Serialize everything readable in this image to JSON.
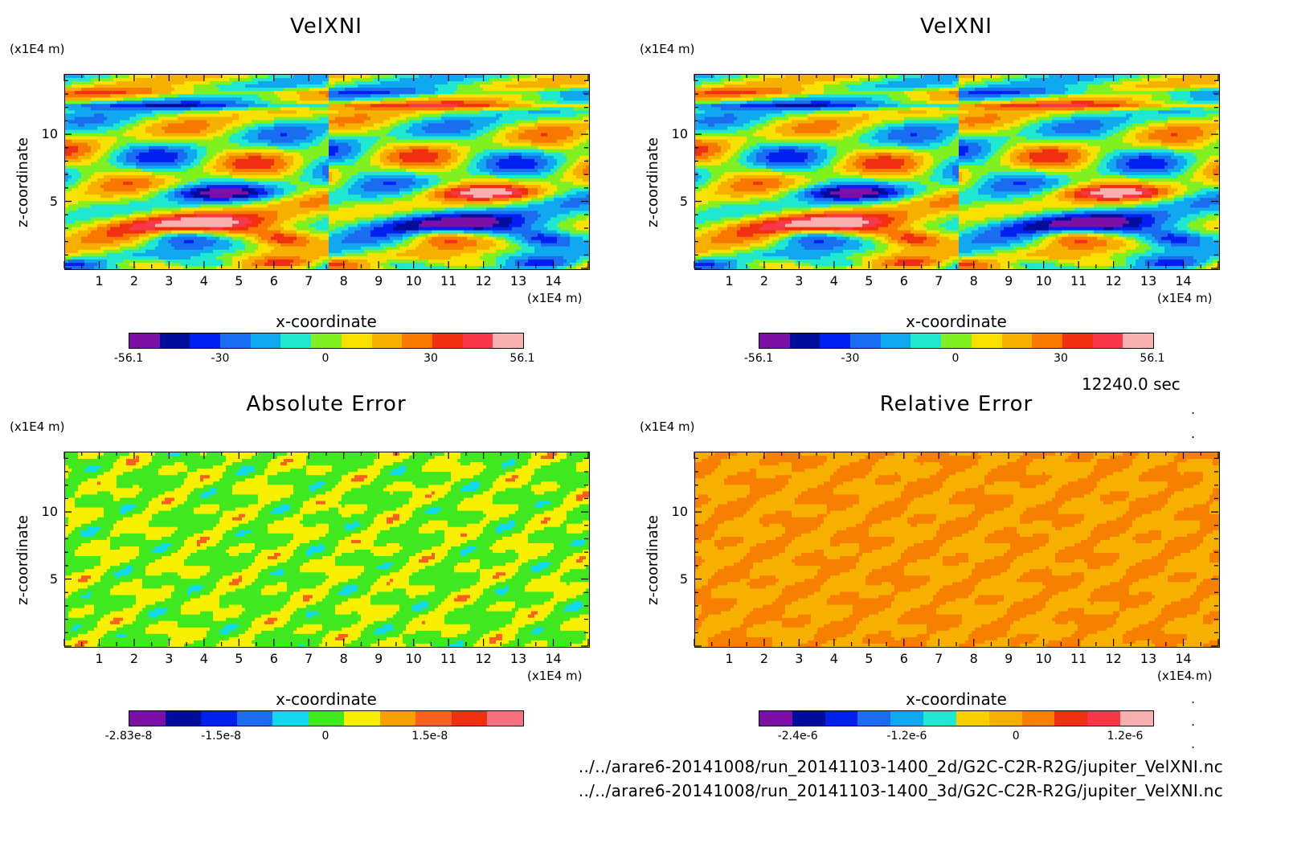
{
  "chart_data": [
    {
      "type": "heatmap",
      "title": "VelXNI",
      "xlabel": "x-coordinate",
      "ylabel": "z-coordinate",
      "x_unit": "(x1E4 m)",
      "y_unit": "(x1E4 m)",
      "x_ticks": [
        "1",
        "2",
        "3",
        "4",
        "5",
        "6",
        "7",
        "8",
        "9",
        "10",
        "11",
        "12",
        "13",
        "14"
      ],
      "y_ticks": [
        "5",
        "10"
      ],
      "xlim": [
        0,
        15
      ],
      "ylim": [
        0,
        14.5
      ],
      "colorbar": {
        "colors": [
          "#7b0fa6",
          "#000c9c",
          "#0020f0",
          "#1a6cf0",
          "#10a8f0",
          "#20e8d0",
          "#80f020",
          "#f8e000",
          "#f8b000",
          "#f87800",
          "#f03010",
          "#f83848",
          "#f8b0b0"
        ],
        "labels": [
          "-56.1",
          "-30",
          "0",
          "30",
          "56.1"
        ],
        "label_values": [
          -56.1,
          -30,
          0,
          30,
          56.1
        ],
        "range": [
          -56.1,
          56.1
        ]
      },
      "field": "velocity"
    },
    {
      "type": "heatmap",
      "title": "VelXNI",
      "xlabel": "x-coordinate",
      "ylabel": "z-coordinate",
      "x_unit": "(x1E4 m)",
      "y_unit": "(x1E4 m)",
      "x_ticks": [
        "1",
        "2",
        "3",
        "4",
        "5",
        "6",
        "7",
        "8",
        "9",
        "10",
        "11",
        "12",
        "13",
        "14"
      ],
      "y_ticks": [
        "5",
        "10"
      ],
      "xlim": [
        0,
        15
      ],
      "ylim": [
        0,
        14.5
      ],
      "colorbar": {
        "colors": [
          "#7b0fa6",
          "#000c9c",
          "#0020f0",
          "#1a6cf0",
          "#10a8f0",
          "#20e8d0",
          "#80f020",
          "#f8e000",
          "#f8b000",
          "#f87800",
          "#f03010",
          "#f83848",
          "#f8b0b0"
        ],
        "labels": [
          "-56.1",
          "-30",
          "0",
          "30",
          "56.1"
        ],
        "label_values": [
          -56.1,
          -30,
          0,
          30,
          56.1
        ],
        "range": [
          -56.1,
          56.1
        ]
      },
      "field": "velocity"
    },
    {
      "type": "heatmap",
      "title": "Absolute Error",
      "xlabel": "x-coordinate",
      "ylabel": "z-coordinate",
      "x_unit": "(x1E4 m)",
      "y_unit": "(x1E4 m)",
      "x_ticks": [
        "1",
        "2",
        "3",
        "4",
        "5",
        "6",
        "7",
        "8",
        "9",
        "10",
        "11",
        "12",
        "13",
        "14"
      ],
      "y_ticks": [
        "5",
        "10"
      ],
      "xlim": [
        0,
        15
      ],
      "ylim": [
        0,
        14.5
      ],
      "colorbar": {
        "colors": [
          "#7b0fa6",
          "#000c9c",
          "#0020f0",
          "#1a6cf0",
          "#10d8f0",
          "#40e820",
          "#f8f000",
          "#f8a000",
          "#f86020",
          "#f03010",
          "#f87080"
        ],
        "labels": [
          "-2.83e-8",
          "-1.5e-8",
          "0",
          "1.5e-8"
        ],
        "label_values": [
          -2.83e-08,
          -1.5e-08,
          0,
          1.5e-08
        ],
        "range": [
          -2.83e-08,
          2.83e-08
        ]
      },
      "field": "abs_error"
    },
    {
      "type": "heatmap",
      "title": "Relative Error",
      "xlabel": "x-coordinate",
      "ylabel": "z-coordinate",
      "x_unit": "(x1E4 m)",
      "y_unit": "(x1E4 m)",
      "x_ticks": [
        "1",
        "2",
        "3",
        "4",
        "5",
        "6",
        "7",
        "8",
        "9",
        "10",
        "11",
        "12",
        "13",
        "14"
      ],
      "y_ticks": [
        "5",
        "10"
      ],
      "xlim": [
        0,
        15
      ],
      "ylim": [
        0,
        14.5
      ],
      "colorbar": {
        "colors": [
          "#7b0fa6",
          "#000c9c",
          "#0020f0",
          "#1a6cf0",
          "#10a8f0",
          "#20e8d0",
          "#f8d000",
          "#f8b000",
          "#f88000",
          "#f03010",
          "#f83848",
          "#f8b0b0"
        ],
        "labels": [
          "-2.4e-6",
          "-1.2e-6",
          "0",
          "1.2e-6"
        ],
        "label_values": [
          -2.4e-06,
          -1.2e-06,
          0,
          1.2e-06
        ],
        "range": [
          -2.83e-06,
          1.5e-06
        ]
      },
      "field": "rel_error"
    }
  ],
  "timestamp": "12240.0 sec",
  "footer": {
    "line1": "../../arare6-20141008/run_20141103-1400_2d/G2C-C2R-R2G/jupiter_VelXNI.nc",
    "line2": "../../arare6-20141008/run_20141103-1400_3d/G2C-C2R-R2G/jupiter_VelXNI.nc"
  }
}
